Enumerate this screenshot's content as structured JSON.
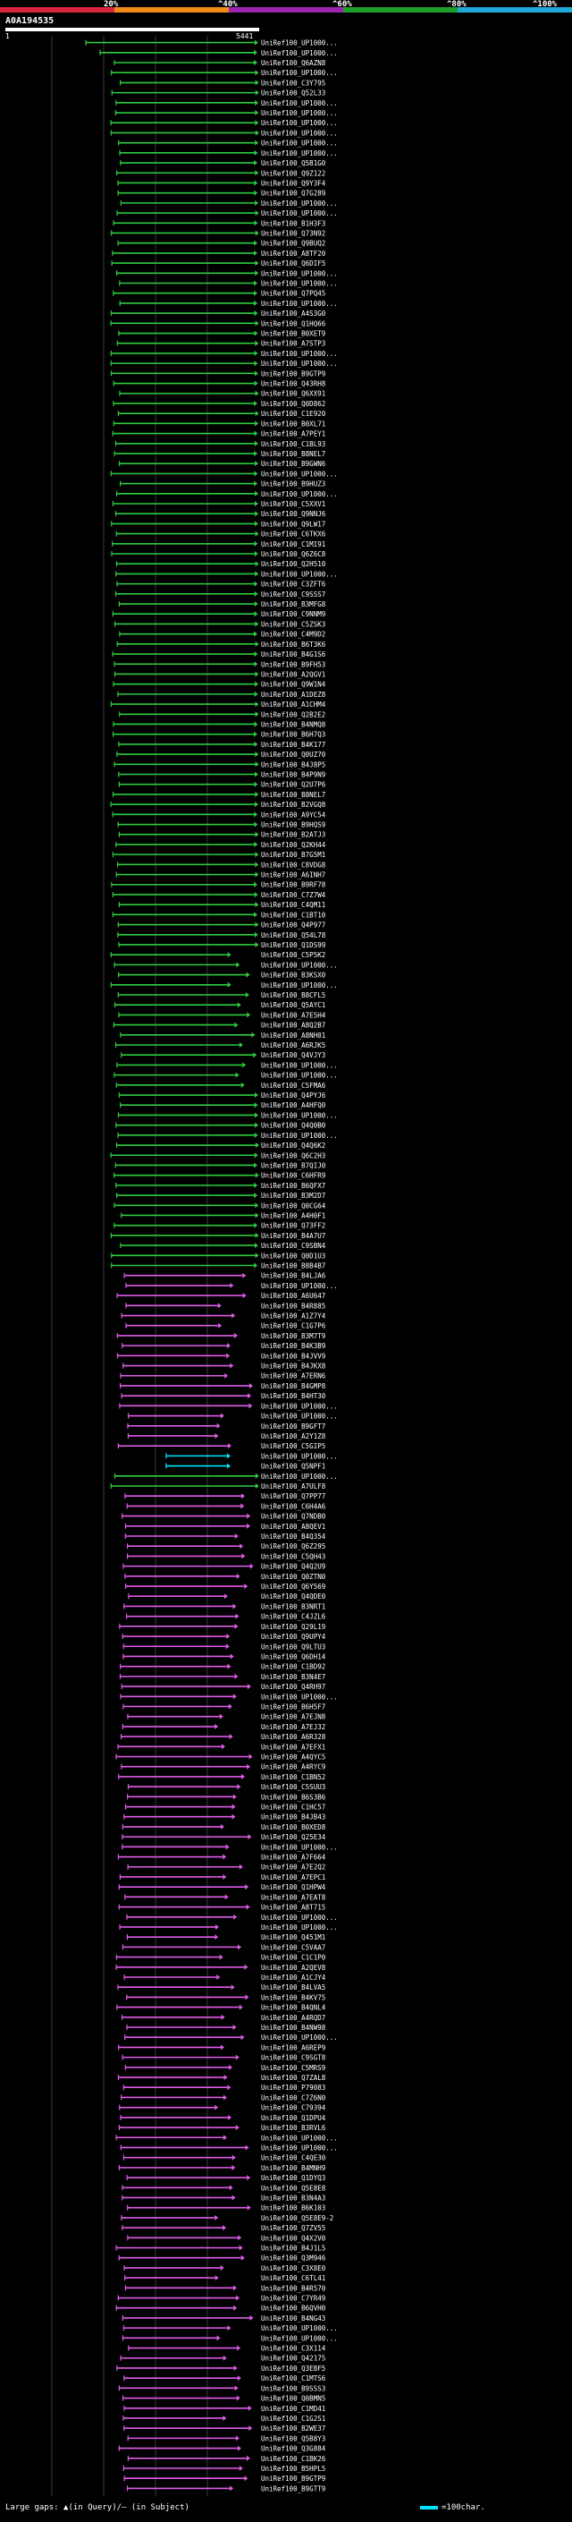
{
  "query": {
    "id": "A0A194535",
    "start": "1",
    "end": "5441"
  },
  "scale": {
    "ticks": [
      "20%",
      "^40%",
      "^60%",
      "^80%",
      "^100%"
    ],
    "colors": [
      "#d7263d",
      "#f28a1a",
      "#9d26b0",
      "#1e9e2a",
      "#20a9d8"
    ]
  },
  "colors": {
    "green": "#2ecc40",
    "magenta": "#e05ce8",
    "cyan": "#00e5ff",
    "grid": "#3a3a3a"
  },
  "hits": [
    "UniRef100_UP1000...",
    "UniRef100_UP1000...",
    "UniRef100_Q6AZN8",
    "UniRef100_UP1000...",
    "UniRef100_C3Y795",
    "UniRef100_Q52L33",
    "UniRef100_UP1000...",
    "UniRef100_UP1000...",
    "UniRef100_UP1000...",
    "UniRef100_UP1000...",
    "UniRef100_UP1000...",
    "UniRef100_UP1000...",
    "UniRef100_Q5B1G0",
    "UniRef100_Q9Z122",
    "UniRef100_Q9Y3F4",
    "UniRef100_Q7G289",
    "UniRef100_UP1000...",
    "UniRef100_UP1000...",
    "UniRef100_B1H3F3",
    "UniRef100_Q73N92",
    "UniRef100_Q9BUQ2",
    "UniRef100_A8TF20",
    "UniRef100_Q6DIF5",
    "UniRef100_UP1000...",
    "UniRef100_UP1000...",
    "UniRef100_Q7PQ45",
    "UniRef100_UP1000...",
    "UniRef100_A4S3G0",
    "UniRef100_Q1HQ66",
    "UniRef100_B0XET9",
    "UniRef100_A7STP3",
    "UniRef100_UP1000...",
    "UniRef100_UP1000...",
    "UniRef100_B9GTP9",
    "UniRef100_Q43RH8",
    "UniRef100_Q6XX91",
    "UniRef100_Q0D862",
    "UniRef100_C1E920",
    "UniRef100_B0XL71",
    "UniRef100_A7PEY1",
    "UniRef100_C1BL93",
    "UniRef100_B8NEL7",
    "UniRef100_B9GWN6",
    "UniRef100_UP1000...",
    "UniRef100_B9HUZ3",
    "UniRef100_UP1000...",
    "UniRef100_C5XXV1",
    "UniRef100_Q9NNJ6",
    "UniRef100_Q9LW17",
    "UniRef100_C6TKX6",
    "UniRef100_C1MI91",
    "UniRef100_Q6Z6C8",
    "UniRef100_Q2H510",
    "UniRef100_UP1000...",
    "UniRef100_C3ZFT6",
    "UniRef100_C9SSS7",
    "UniRef100_B3MFG8",
    "UniRef100_C9NNM9",
    "UniRef100_C5ZSK3",
    "UniRef100_C4M9D2",
    "UniRef100_B6T3K6",
    "UniRef100_B4G1S6",
    "UniRef100_B9FH53",
    "UniRef100_A2QGV1",
    "UniRef100_Q9W1N4",
    "UniRef100_A1DEZ8",
    "UniRef100_A1CHM4",
    "UniRef100_Q2B2E2",
    "UniRef100_B4NMQ8",
    "UniRef100_B6H7Q3",
    "UniRef100_B4K177",
    "UniRef100_Q0UZ70",
    "UniRef100_B4J8P5",
    "UniRef100_B4P9N9",
    "UniRef100_Q2U7P6",
    "UniRef100_B8NEL7",
    "UniRef100_B2VGQ8",
    "UniRef100_A9YC54",
    "UniRef100_B9HQS9",
    "UniRef100_B2ATJ3",
    "UniRef100_Q2KH44",
    "UniRef100_B7G5M1",
    "UniRef100_C8VDG8",
    "UniRef100_A6INH7",
    "UniRef100_B9RF78",
    "UniRef100_C7Z7W4",
    "UniRef100_C4QM11",
    "UniRef100_C1BT10",
    "UniRef100_Q4P977",
    "UniRef100_Q54L78",
    "UniRef100_Q1DS99",
    "UniRef100_C5P5K2",
    "UniRef100_UP1000...",
    "UniRef100_B3KSX0",
    "UniRef100_UP1000...",
    "UniRef100_B8CFL5",
    "UniRef100_Q5AYC1",
    "UniRef100_A7E5H4",
    "UniRef100_A8Q2B7",
    "UniRef100_A8NH01",
    "UniRef100_A6RJK5",
    "UniRef100_Q4VJY3",
    "UniRef100_UP1000...",
    "UniRef100_UP1000...",
    "UniRef100_C5FMA6",
    "UniRef100_Q4PYJ6",
    "UniRef100_A4HFQ0",
    "UniRef100_UP1000...",
    "UniRef100_Q4Q0B0",
    "UniRef100_UP1000...",
    "UniRef100_Q4Q6K2",
    "UniRef100_Q6C2H3",
    "UniRef100_B7QIJ0",
    "UniRef100_C6HFR9",
    "UniRef100_B6QFX7",
    "UniRef100_B3M2D7",
    "UniRef100_Q0CG64",
    "UniRef100_A4H0F1",
    "UniRef100_Q73FF2",
    "UniRef100_B4A7U7",
    "UniRef100_C9SBN4",
    "UniRef100_Q0D1U3",
    "UniRef100_B8B4B7",
    "UniRef100_B4LJA6",
    "UniRef100_UP1000...",
    "UniRef100_A6U647",
    "UniRef100_B4R885",
    "UniRef100_A1Z7Y4",
    "UniRef100_C1G7P6",
    "UniRef100_B3M7T9",
    "UniRef100_B4K3B9",
    "UniRef100_B4JVV9",
    "UniRef100_B4JKX8",
    "UniRef100_A7ERN6",
    "UniRef100_B4GMP8",
    "UniRef100_B4HT30",
    "UniRef100_UP1000...",
    "UniRef100_UP1000...",
    "UniRef100_B9GFT7",
    "UniRef100_A2Y1Z8",
    "UniRef100_C5GIP5",
    "UniRef100_UP1000...",
    "UniRef100_Q5NPF1",
    "UniRef100_UP1000...",
    "UniRef100_A7ULF8",
    "UniRef100_Q7PP77",
    "UniRef100_C6H4A6",
    "UniRef100_Q7NDB0",
    "UniRef100_A8QEV1",
    "UniRef100_B4Q354",
    "UniRef100_Q6Z295",
    "UniRef100_C5QH43",
    "UniRef100_Q4Q2U9",
    "UniRef100_Q0ZTN0",
    "UniRef100_Q6Y569",
    "UniRef100_Q4QDE0",
    "UniRef100_B3NRT1",
    "UniRef100_C4JZL6",
    "UniRef100_Q29L19",
    "UniRef100_Q9UPY4",
    "UniRef100_Q9LTU3",
    "UniRef100_Q6DH14",
    "UniRef100_C1BD92",
    "UniRef100_B3N4E7",
    "UniRef100_Q4RH97",
    "UniRef100_UP1000...",
    "UniRef100_B6H5F7",
    "UniRef100_A7EJN8",
    "UniRef100_A7EJ32",
    "UniRef100_A6R328",
    "UniRef100_A7EFX1",
    "UniRef100_A4QYC5",
    "UniRef100_A4RYC9",
    "UniRef100_C1BN52",
    "UniRef100_C5SUU3",
    "UniRef100_B6S3B6",
    "UniRef100_C1HC57",
    "UniRef100_B4JB43",
    "UniRef100_B0XED8",
    "UniRef100_Q25E34",
    "UniRef100_UP1000...",
    "UniRef100_A7F664",
    "UniRef100_A7E2Q2",
    "UniRef100_A7EPC1",
    "UniRef100_Q1HPW4",
    "UniRef100_A7EAT8",
    "UniRef100_A8T715",
    "UniRef100_UP1000...",
    "UniRef100_UP1000...",
    "UniRef100_Q451M1",
    "UniRef100_C5VAA7",
    "UniRef100_C1C1P0",
    "UniRef100_A2QEV8",
    "UniRef100_A1CJY4",
    "UniRef100_B4LVA5",
    "UniRef100_B4KV75",
    "UniRef100_B4QNL4",
    "UniRef100_A4RQD7",
    "UniRef100_B4NW98",
    "UniRef100_UP1000...",
    "UniRef100_A6REP9",
    "UniRef100_C9SGT8",
    "UniRef100_C5MRS9",
    "UniRef100_Q7ZAL8",
    "UniRef100_P79083",
    "UniRef100_C7Z6N0",
    "UniRef100_C79394",
    "UniRef100_Q1DPU4",
    "UniRef100_B3RVL6",
    "UniRef100_UP1000...",
    "UniRef100_UP1000...",
    "UniRef100_C4QE30",
    "UniRef100_B4MNH9",
    "UniRef100_Q1DYQ3",
    "UniRef100_Q5E8E8",
    "UniRef100_B3N4A3",
    "UniRef100_B6K103",
    "UniRef100_Q5E8E9-2",
    "UniRef100_Q7ZV55",
    "UniRef100_Q4X2V0",
    "UniRef100_B4J1L5",
    "UniRef100_Q3M946",
    "UniRef100_C3X8E0",
    "UniRef100_C6TL41",
    "UniRef100_B4R570",
    "UniRef100_C7YR49",
    "UniRef100_B6QVH0",
    "UniRef100_B4NG43",
    "UniRef100_UP1000...",
    "UniRef100_UP1000...",
    "UniRef100_C3X114",
    "UniRef100_Q42175",
    "UniRef100_Q3EBF5",
    "UniRef100_C1MTS6",
    "UniRef100_B9SSS3",
    "UniRef100_Q0BMN5",
    "UniRef100_C1MD41",
    "UniRef100_C1G2S1",
    "UniRef100_B2WE37",
    "UniRef100_Q5B8Y3",
    "UniRef100_Q3G884",
    "UniRef100_C1BK26",
    "UniRef100_B5HPL5",
    "UniRef100_B9GTP9",
    "UniRef100_B9GTT9"
  ],
  "footer": {
    "legend_gaps": "Large gaps: ▲(in Query)/— (in Subject)",
    "legend_scale": "=100char."
  }
}
